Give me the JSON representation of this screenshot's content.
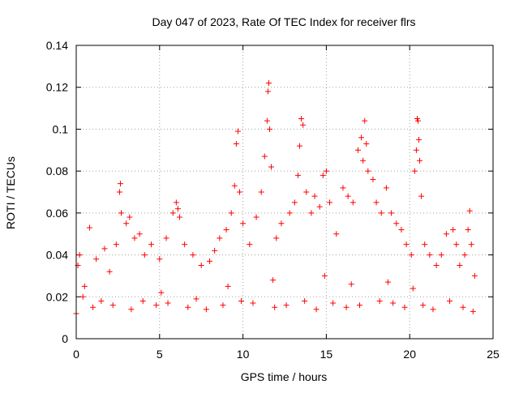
{
  "chart_data": {
    "type": "scatter",
    "title": "Day 047 of 2023, Rate Of TEC Index for receiver flrs",
    "xlabel": "GPS time / hours",
    "ylabel": "ROTI / TECUs",
    "xlim": [
      0,
      25
    ],
    "ylim": [
      0,
      0.14
    ],
    "xticks": [
      0,
      5,
      10,
      15,
      20,
      25
    ],
    "xtick_labels": [
      "0",
      "5",
      "10",
      "15",
      "20",
      "25"
    ],
    "yticks": [
      0,
      0.02,
      0.04,
      0.06,
      0.08,
      0.1,
      0.12,
      0.14
    ],
    "ytick_labels": [
      "0",
      "0.02",
      "0.04",
      "0.06",
      "0.08",
      "0.1",
      "0.12",
      "0.14"
    ],
    "grid": true,
    "marker": "+",
    "color": "#ff0000",
    "series": [
      {
        "name": "flrs",
        "x": [
          0.1,
          0.2,
          0.5,
          0.8,
          1.2,
          1.7,
          2.0,
          2.4,
          2.6,
          2.65,
          2.7,
          3.0,
          3.2,
          3.5,
          3.8,
          4.1,
          4.5,
          5.0,
          5.4,
          5.8,
          6.0,
          6.1,
          6.2,
          6.5,
          7.0,
          7.5,
          8.0,
          8.3,
          8.6,
          9.0,
          9.3,
          9.5,
          9.6,
          9.7,
          9.8,
          10.0,
          10.4,
          10.8,
          11.1,
          11.3,
          11.45,
          11.5,
          11.55,
          11.6,
          11.7,
          12.0,
          12.3,
          12.8,
          13.1,
          13.3,
          13.4,
          13.5,
          13.6,
          13.8,
          14.1,
          14.3,
          14.6,
          14.8,
          15.0,
          15.2,
          15.6,
          16.0,
          16.3,
          16.6,
          16.9,
          17.1,
          17.2,
          17.3,
          17.4,
          17.5,
          17.8,
          18.0,
          18.3,
          18.6,
          18.9,
          19.2,
          19.5,
          19.8,
          20.1,
          20.3,
          20.4,
          20.45,
          20.5,
          20.55,
          20.6,
          20.7,
          20.9,
          21.2,
          21.6,
          21.9,
          22.2,
          22.6,
          22.8,
          23.0,
          23.3,
          23.5,
          23.6,
          23.7,
          23.9,
          0.0,
          0.4,
          1.0,
          1.5,
          2.2,
          3.3,
          4.0,
          4.8,
          5.5,
          6.7,
          7.2,
          7.8,
          8.8,
          9.9,
          10.6,
          11.9,
          12.6,
          13.7,
          14.4,
          15.4,
          16.2,
          17.0,
          18.2,
          19.0,
          19.7,
          20.8,
          21.4,
          22.4,
          23.2,
          23.8,
          5.1,
          9.1,
          11.8,
          14.9,
          16.5,
          18.7,
          20.2
        ],
        "y": [
          0.035,
          0.04,
          0.025,
          0.053,
          0.038,
          0.043,
          0.032,
          0.045,
          0.07,
          0.074,
          0.06,
          0.055,
          0.058,
          0.048,
          0.05,
          0.04,
          0.045,
          0.038,
          0.048,
          0.06,
          0.065,
          0.062,
          0.058,
          0.045,
          0.04,
          0.035,
          0.037,
          0.042,
          0.048,
          0.052,
          0.06,
          0.073,
          0.093,
          0.099,
          0.07,
          0.055,
          0.045,
          0.058,
          0.07,
          0.087,
          0.104,
          0.118,
          0.122,
          0.1,
          0.082,
          0.048,
          0.055,
          0.06,
          0.065,
          0.078,
          0.092,
          0.105,
          0.102,
          0.07,
          0.06,
          0.068,
          0.063,
          0.078,
          0.08,
          0.065,
          0.05,
          0.072,
          0.068,
          0.065,
          0.09,
          0.096,
          0.085,
          0.104,
          0.093,
          0.08,
          0.076,
          0.065,
          0.06,
          0.072,
          0.06,
          0.055,
          0.052,
          0.045,
          0.04,
          0.08,
          0.09,
          0.105,
          0.104,
          0.095,
          0.085,
          0.068,
          0.045,
          0.04,
          0.035,
          0.04,
          0.05,
          0.052,
          0.045,
          0.035,
          0.04,
          0.052,
          0.061,
          0.045,
          0.03,
          0.012,
          0.02,
          0.015,
          0.018,
          0.016,
          0.014,
          0.018,
          0.016,
          0.017,
          0.015,
          0.019,
          0.014,
          0.016,
          0.018,
          0.017,
          0.015,
          0.016,
          0.018,
          0.014,
          0.017,
          0.015,
          0.016,
          0.018,
          0.017,
          0.015,
          0.016,
          0.014,
          0.018,
          0.015,
          0.013,
          0.022,
          0.025,
          0.028,
          0.03,
          0.026,
          0.027,
          0.024
        ]
      }
    ]
  }
}
